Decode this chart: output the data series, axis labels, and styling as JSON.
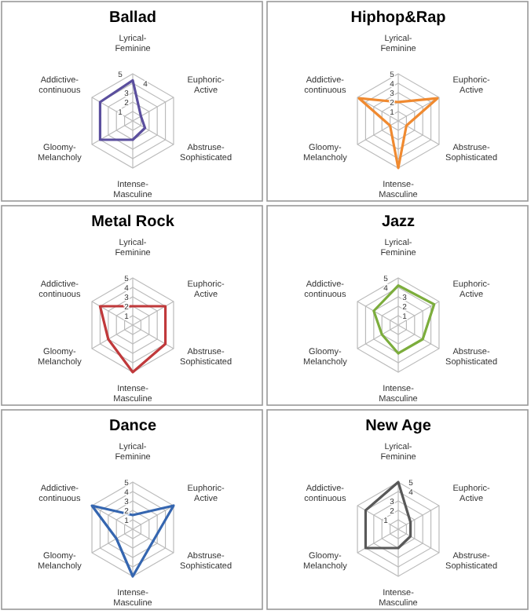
{
  "chart_data": [
    {
      "type": "radar",
      "title": "Ballad",
      "categories": [
        "Lyrical-Feminine",
        "Euphoric-Active",
        "Abstruse-Sophisticated",
        "Intense-Masculine",
        "Gloomy-Melancholy",
        "Addictive-continuous"
      ],
      "ylim": [
        0,
        5
      ],
      "yticks": [
        1,
        2,
        3,
        4,
        5
      ],
      "series": [
        {
          "color": "#5b4f9e",
          "values": [
            4.3,
            1,
            1.5,
            2,
            4,
            4
          ]
        }
      ]
    },
    {
      "type": "radar",
      "title": "Hiphop&Rap",
      "categories": [
        "Lyrical-Feminine",
        "Euphoric-Active",
        "Abstruse-Sophisticated",
        "Intense-Masculine",
        "Gloomy-Melancholy",
        "Addictive-continuous"
      ],
      "ylim": [
        0,
        5
      ],
      "yticks": [
        1,
        2,
        3,
        4,
        5
      ],
      "series": [
        {
          "color": "#f08a30",
          "values": [
            2,
            4.8,
            1,
            5,
            1,
            4.8
          ]
        }
      ]
    },
    {
      "type": "radar",
      "title": "Metal Rock",
      "categories": [
        "Lyrical-Feminine",
        "Euphoric-Active",
        "Abstruse-Sophisticated",
        "Intense-Masculine",
        "Gloomy-Melancholy",
        "Addictive-continuous"
      ],
      "ylim": [
        0,
        5
      ],
      "yticks": [
        1,
        2,
        3,
        4,
        5
      ],
      "series": [
        {
          "color": "#c0393b",
          "values": [
            2,
            4,
            4,
            5,
            3,
            4
          ]
        }
      ]
    },
    {
      "type": "radar",
      "title": "Jazz",
      "categories": [
        "Lyrical-Feminine",
        "Euphoric-Active",
        "Abstruse-Sophisticated",
        "Intense-Masculine",
        "Gloomy-Melancholy",
        "Addictive-continuous"
      ],
      "ylim": [
        0,
        5
      ],
      "yticks": [
        1,
        2,
        3,
        4,
        5
      ],
      "series": [
        {
          "color": "#7cad3c",
          "values": [
            4.2,
            4.4,
            3,
            3,
            2,
            3
          ]
        }
      ]
    },
    {
      "type": "radar",
      "title": "Dance",
      "categories": [
        "Lyrical-Feminine",
        "Euphoric-Active",
        "Abstruse-Sophisticated",
        "Intense-Masculine",
        "Gloomy-Melancholy",
        "Addictive-continuous"
      ],
      "ylim": [
        0,
        5
      ],
      "yticks": [
        1,
        2,
        3,
        4,
        5
      ],
      "series": [
        {
          "color": "#3566b0",
          "values": [
            1.5,
            5,
            2.5,
            5,
            2,
            5
          ]
        }
      ]
    },
    {
      "type": "radar",
      "title": "New Age",
      "categories": [
        "Lyrical-Feminine",
        "Euphoric-Active",
        "Abstruse-Sophisticated",
        "Intense-Masculine",
        "Gloomy-Melancholy",
        "Addictive-continuous"
      ],
      "ylim": [
        0,
        5
      ],
      "yticks": [
        1,
        2,
        3,
        4,
        5
      ],
      "series": [
        {
          "color": "#595959",
          "values": [
            5,
            1.5,
            1.5,
            2,
            4,
            4
          ]
        }
      ]
    }
  ]
}
